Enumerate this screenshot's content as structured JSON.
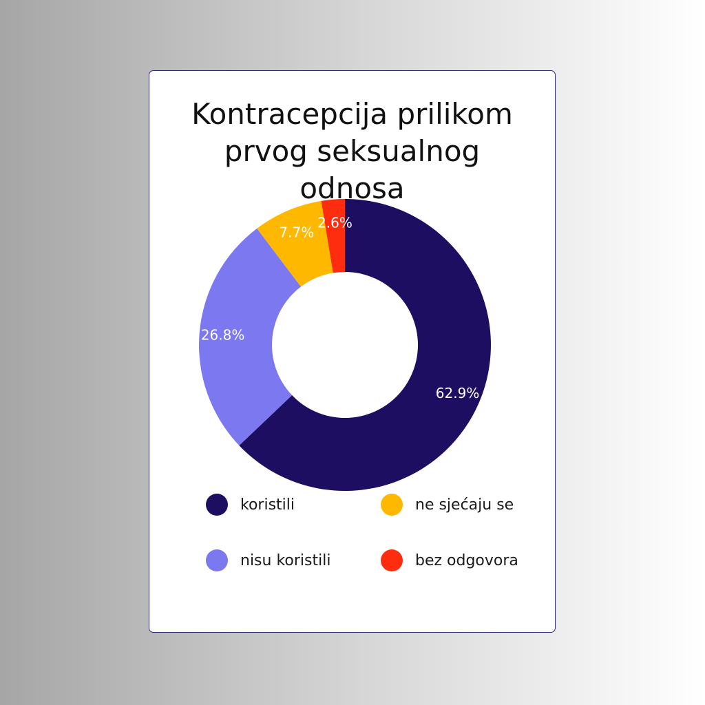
{
  "chart_data": {
    "type": "pie",
    "title": "Kontracepcija prilikom prvog seksualnog odnosa",
    "donut": true,
    "categories": [
      "koristili",
      "nisu koristili",
      "ne sjećaju se",
      "bez odgovora"
    ],
    "values": [
      62.9,
      26.8,
      7.7,
      2.6
    ],
    "value_labels": [
      "62.9%",
      "26.8%",
      "7.7%",
      "2.6%"
    ],
    "colors": [
      "#1e0e62",
      "#7b78f0",
      "#ffb800",
      "#ff2d0f"
    ],
    "legend": "bottom"
  },
  "legend": {
    "items": [
      {
        "label": "koristili",
        "color": "#1e0e62"
      },
      {
        "label": "ne sjećaju se",
        "color": "#ffb800"
      },
      {
        "label": "nisu koristili",
        "color": "#7b78f0"
      },
      {
        "label": "bez odgovora",
        "color": "#ff2d0f"
      }
    ]
  }
}
